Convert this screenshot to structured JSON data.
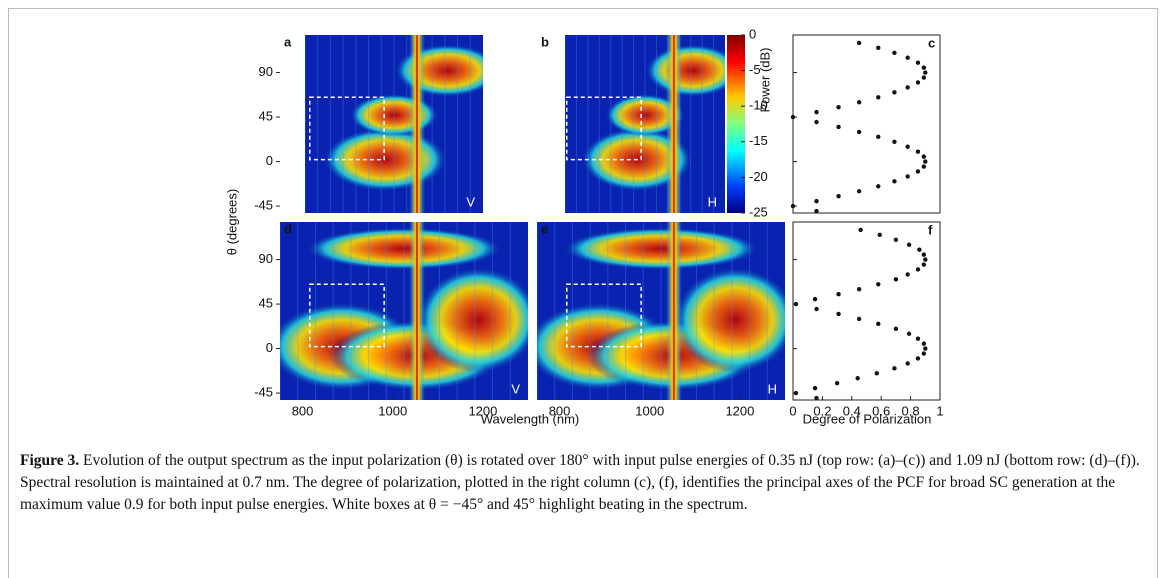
{
  "figure": {
    "panel_labels": [
      "a",
      "b",
      "c",
      "d",
      "e",
      "f"
    ],
    "polarization_tags": [
      "V",
      "H",
      "V",
      "H"
    ],
    "theta_axis": {
      "label": "θ (degrees)",
      "lim": [
        -52,
        128
      ],
      "ticks": [
        -45,
        0,
        45,
        90
      ]
    },
    "wavelength_axis": {
      "label": "Wavelength (nm)",
      "lim": [
        750,
        1300
      ],
      "ticks": [
        800,
        1000,
        1200
      ]
    },
    "dop_axis": {
      "label": "Degree of Polarization",
      "lim": [
        0,
        1
      ],
      "ticks": [
        0,
        0.2,
        0.4,
        0.6,
        0.8,
        1
      ]
    },
    "colorbar": {
      "label": "Power (dB)",
      "lim": [
        -25,
        0
      ],
      "ticks": [
        0,
        -5,
        -10,
        -15,
        -20,
        -25
      ]
    },
    "dop_data": {
      "theta": [
        -50,
        -45,
        -40,
        -35,
        -30,
        -25,
        -20,
        -15,
        -10,
        -5,
        0,
        5,
        10,
        15,
        20,
        25,
        30,
        35,
        40,
        45,
        50,
        55,
        60,
        65,
        70,
        75,
        80,
        85,
        90,
        95,
        100,
        105,
        110,
        115,
        120
      ],
      "top": [
        0.16,
        0,
        0.16,
        0.31,
        0.45,
        0.58,
        0.69,
        0.78,
        0.85,
        0.89,
        0.9,
        0.89,
        0.85,
        0.78,
        0.69,
        0.58,
        0.45,
        0.31,
        0.16,
        0,
        0.16,
        0.31,
        0.45,
        0.58,
        0.69,
        0.78,
        0.85,
        0.89,
        0.9,
        0.89,
        0.85,
        0.78,
        0.69,
        0.58,
        0.45
      ],
      "bottom": [
        0.16,
        0.02,
        0.15,
        0.3,
        0.44,
        0.57,
        0.69,
        0.78,
        0.85,
        0.89,
        0.9,
        0.89,
        0.85,
        0.79,
        0.7,
        0.58,
        0.45,
        0.31,
        0.16,
        0.02,
        0.15,
        0.31,
        0.45,
        0.58,
        0.7,
        0.78,
        0.85,
        0.89,
        0.9,
        0.89,
        0.86,
        0.79,
        0.7,
        0.59,
        0.46
      ]
    }
  },
  "caption": {
    "label": "Figure 3.",
    "text": "Evolution of the output spectrum as the input polarization (θ) is rotated over 180° with input pulse energies of 0.35 nJ (top row: (a)–(c)) and 1.09 nJ (bottom row: (d)–(f)). Spectral resolution is maintained at 0.7 nm. The degree of polarization, plotted in the right column (c), (f), identifies the principal axes of the PCF for broad SC generation at the maximum value 0.9 for both input pulse energies. White boxes at θ = −45° and 45° highlight beating in the spectrum."
  }
}
